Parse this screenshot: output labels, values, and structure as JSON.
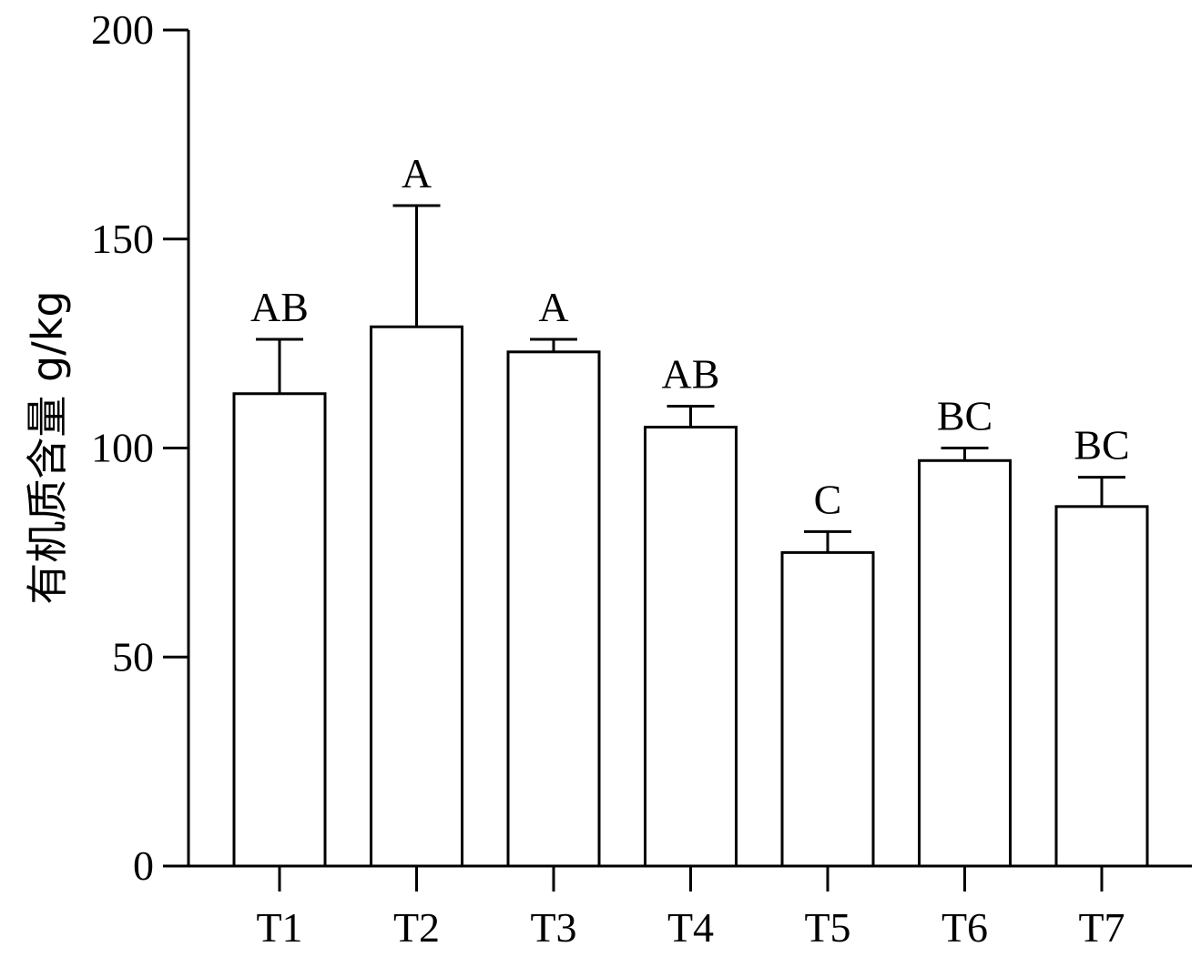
{
  "chart_data": {
    "type": "bar",
    "title": "",
    "xlabel": "",
    "ylabel": "有机质含量  g/kg",
    "ylim": [
      0,
      200
    ],
    "yticks": [
      0,
      50,
      100,
      150,
      200
    ],
    "grid": false,
    "legend": "none",
    "categories": [
      "T1",
      "T2",
      "T3",
      "T4",
      "T5",
      "T6",
      "T7"
    ],
    "values": [
      113,
      129,
      123,
      105,
      75,
      97,
      86
    ],
    "error_upper": [
      13,
      29,
      3,
      5,
      5,
      3,
      7
    ],
    "significance": [
      "AB",
      "A",
      "A",
      "AB",
      "C",
      "BC",
      "BC"
    ],
    "colors": {
      "bar_fill": "#ffffff",
      "bar_stroke": "#000000"
    }
  }
}
